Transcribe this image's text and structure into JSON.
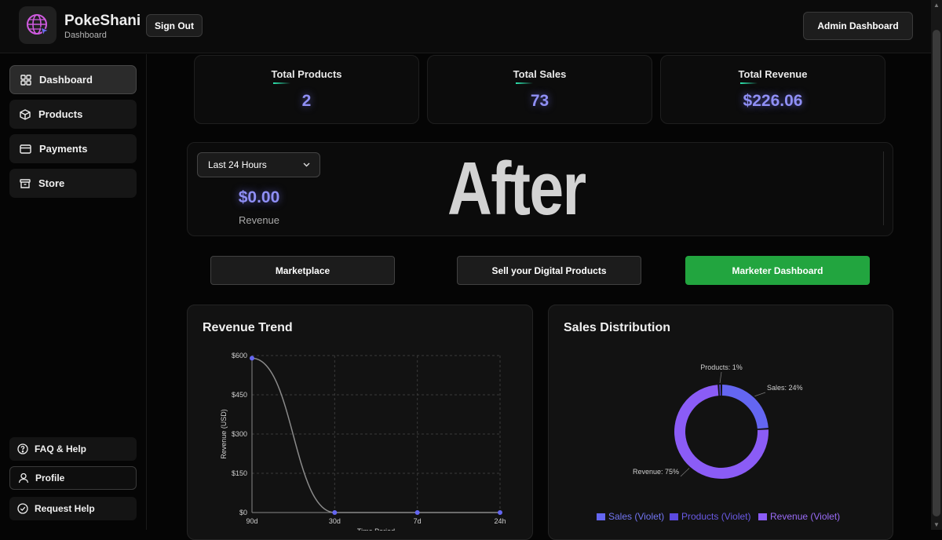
{
  "header": {
    "brand_name": "PokeShani",
    "brand_sub": "Dashboard",
    "sign_out": "Sign Out",
    "admin_dashboard": "Admin Dashboard"
  },
  "sidebar": {
    "items": [
      {
        "label": "Dashboard",
        "icon": "grid-icon"
      },
      {
        "label": "Products",
        "icon": "box-icon"
      },
      {
        "label": "Payments",
        "icon": "credit-card-icon"
      },
      {
        "label": "Store",
        "icon": "archive-icon"
      }
    ],
    "bottom": [
      {
        "label": "FAQ & Help",
        "icon": "help-circle-icon"
      },
      {
        "label": "Profile",
        "icon": "user-icon"
      },
      {
        "label": "Request Help",
        "icon": "check-circle-icon"
      }
    ]
  },
  "stats": [
    {
      "label": "Total Products",
      "value": "2"
    },
    {
      "label": "Total Sales",
      "value": "73"
    },
    {
      "label": "Total Revenue",
      "value": "$226.06"
    }
  ],
  "filter": {
    "period": "Last 24 Hours",
    "revenue_value": "$0.00",
    "revenue_label": "Revenue"
  },
  "overlay_text": "After",
  "actions": {
    "marketplace": "Marketplace",
    "sell": "Sell your Digital Products",
    "marketer": "Marketer Dashboard"
  },
  "colors": {
    "accent": "#8f8ff5",
    "green": "#22a53f",
    "sales": "#6466f1",
    "products": "#5b4ae0",
    "revenue": "#8b5cf6"
  },
  "chart_data": [
    {
      "type": "line",
      "title": "Revenue Trend",
      "xlabel": "Time Period",
      "ylabel": "Revenue (USD)",
      "categories": [
        "90d",
        "30d",
        "7d",
        "24h"
      ],
      "values": [
        590,
        0,
        0,
        0
      ],
      "yticks": [
        "$0",
        "$150",
        "$300",
        "$450",
        "$600"
      ],
      "ylim": [
        0,
        600
      ],
      "grid": true
    },
    {
      "type": "pie",
      "title": "Sales Distribution",
      "slices": [
        {
          "name": "Sales (Violet)",
          "label": "Sales: 24%",
          "value": 24
        },
        {
          "name": "Revenue (Violet)",
          "label": "Revenue: 75%",
          "value": 75
        },
        {
          "name": "Products (Violet)",
          "label": "Products: 1%",
          "value": 1
        }
      ],
      "legend": [
        "Sales (Violet)",
        "Products (Violet)",
        "Revenue (Violet)"
      ],
      "legend_position": "bottom"
    }
  ]
}
